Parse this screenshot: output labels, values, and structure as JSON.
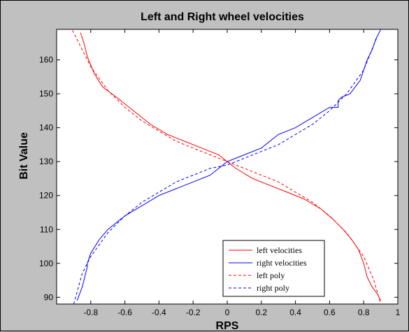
{
  "chart_data": {
    "type": "line",
    "title": "Left and Right wheel velocities",
    "xlabel": "RPS",
    "ylabel": "Bit Value",
    "xlim": [
      -1,
      1
    ],
    "ylim": [
      88,
      169
    ],
    "xticks": [
      -0.8,
      -0.6,
      -0.4,
      -0.2,
      0,
      0.2,
      0.4,
      0.6,
      0.8,
      1
    ],
    "xtick_labels": [
      "-0.8",
      "-0.6",
      "-0.4",
      "-0.2",
      "0",
      "0.2",
      "0.4",
      "0.6",
      "0.8",
      "1"
    ],
    "yticks": [
      90,
      100,
      110,
      120,
      130,
      140,
      150,
      160
    ],
    "ytick_labels": [
      "90",
      "100",
      "110",
      "120",
      "130",
      "140",
      "150",
      "160"
    ],
    "grid": false,
    "legend_position": "bottom-right",
    "series": [
      {
        "name": "left velocities",
        "color": "#ff0000",
        "style": "solid",
        "x": [
          -0.86,
          -0.84,
          -0.82,
          -0.78,
          -0.73,
          -0.65,
          -0.55,
          -0.45,
          -0.35,
          -0.25,
          -0.15,
          -0.05,
          0,
          0.05,
          0.15,
          0.25,
          0.35,
          0.45,
          0.55,
          0.62,
          0.68,
          0.73,
          0.77,
          0.8,
          0.82,
          0.83,
          0.85,
          0.88,
          0.9
        ],
        "y": [
          168,
          165,
          161,
          156,
          152,
          149,
          145,
          141,
          138,
          136,
          134,
          132,
          130,
          128,
          125,
          123,
          121,
          119,
          116,
          113,
          110,
          107,
          104,
          100,
          96,
          95,
          93,
          91,
          89
        ]
      },
      {
        "name": "right velocities",
        "color": "#0000ff",
        "style": "solid",
        "x": [
          -0.88,
          -0.85,
          -0.83,
          -0.82,
          -0.82,
          -0.8,
          -0.75,
          -0.7,
          -0.65,
          -0.6,
          -0.5,
          -0.4,
          -0.3,
          -0.2,
          -0.1,
          -0.05,
          0,
          0.05,
          0.1,
          0.2,
          0.3,
          0.4,
          0.5,
          0.6,
          0.65,
          0.65,
          0.67,
          0.72,
          0.78,
          0.8,
          0.82,
          0.85,
          0.87,
          0.9
        ],
        "y": [
          89,
          93,
          97,
          99,
          100,
          103,
          107,
          110,
          112,
          114,
          117,
          120,
          122,
          124,
          126,
          128,
          130,
          131,
          132,
          134,
          138,
          140,
          143,
          146,
          146,
          148,
          149,
          150,
          154,
          157,
          160,
          163,
          166,
          169
        ]
      },
      {
        "name": "left poly",
        "color": "#ff0000",
        "style": "dashed",
        "x": [
          -0.92,
          -0.85,
          -0.8,
          -0.7,
          -0.6,
          -0.5,
          -0.4,
          -0.3,
          -0.2,
          -0.1,
          0,
          0.1,
          0.2,
          0.3,
          0.4,
          0.5,
          0.6,
          0.7,
          0.8,
          0.86,
          0.9
        ],
        "y": [
          170,
          163,
          158,
          151,
          146,
          142,
          139,
          136,
          134,
          132,
          130,
          128,
          126,
          124,
          121,
          118,
          114,
          109,
          102,
          95,
          88
        ]
      },
      {
        "name": "right poly",
        "color": "#0000ff",
        "style": "dashed",
        "x": [
          -0.9,
          -0.85,
          -0.8,
          -0.7,
          -0.6,
          -0.5,
          -0.4,
          -0.3,
          -0.2,
          -0.1,
          0,
          0.1,
          0.2,
          0.3,
          0.4,
          0.5,
          0.6,
          0.7,
          0.8,
          0.88
        ],
        "y": [
          88,
          97,
          102,
          109,
          114,
          118,
          121,
          124,
          126,
          128,
          129,
          131,
          133,
          135,
          138,
          141,
          145,
          150,
          157,
          167
        ]
      }
    ]
  }
}
